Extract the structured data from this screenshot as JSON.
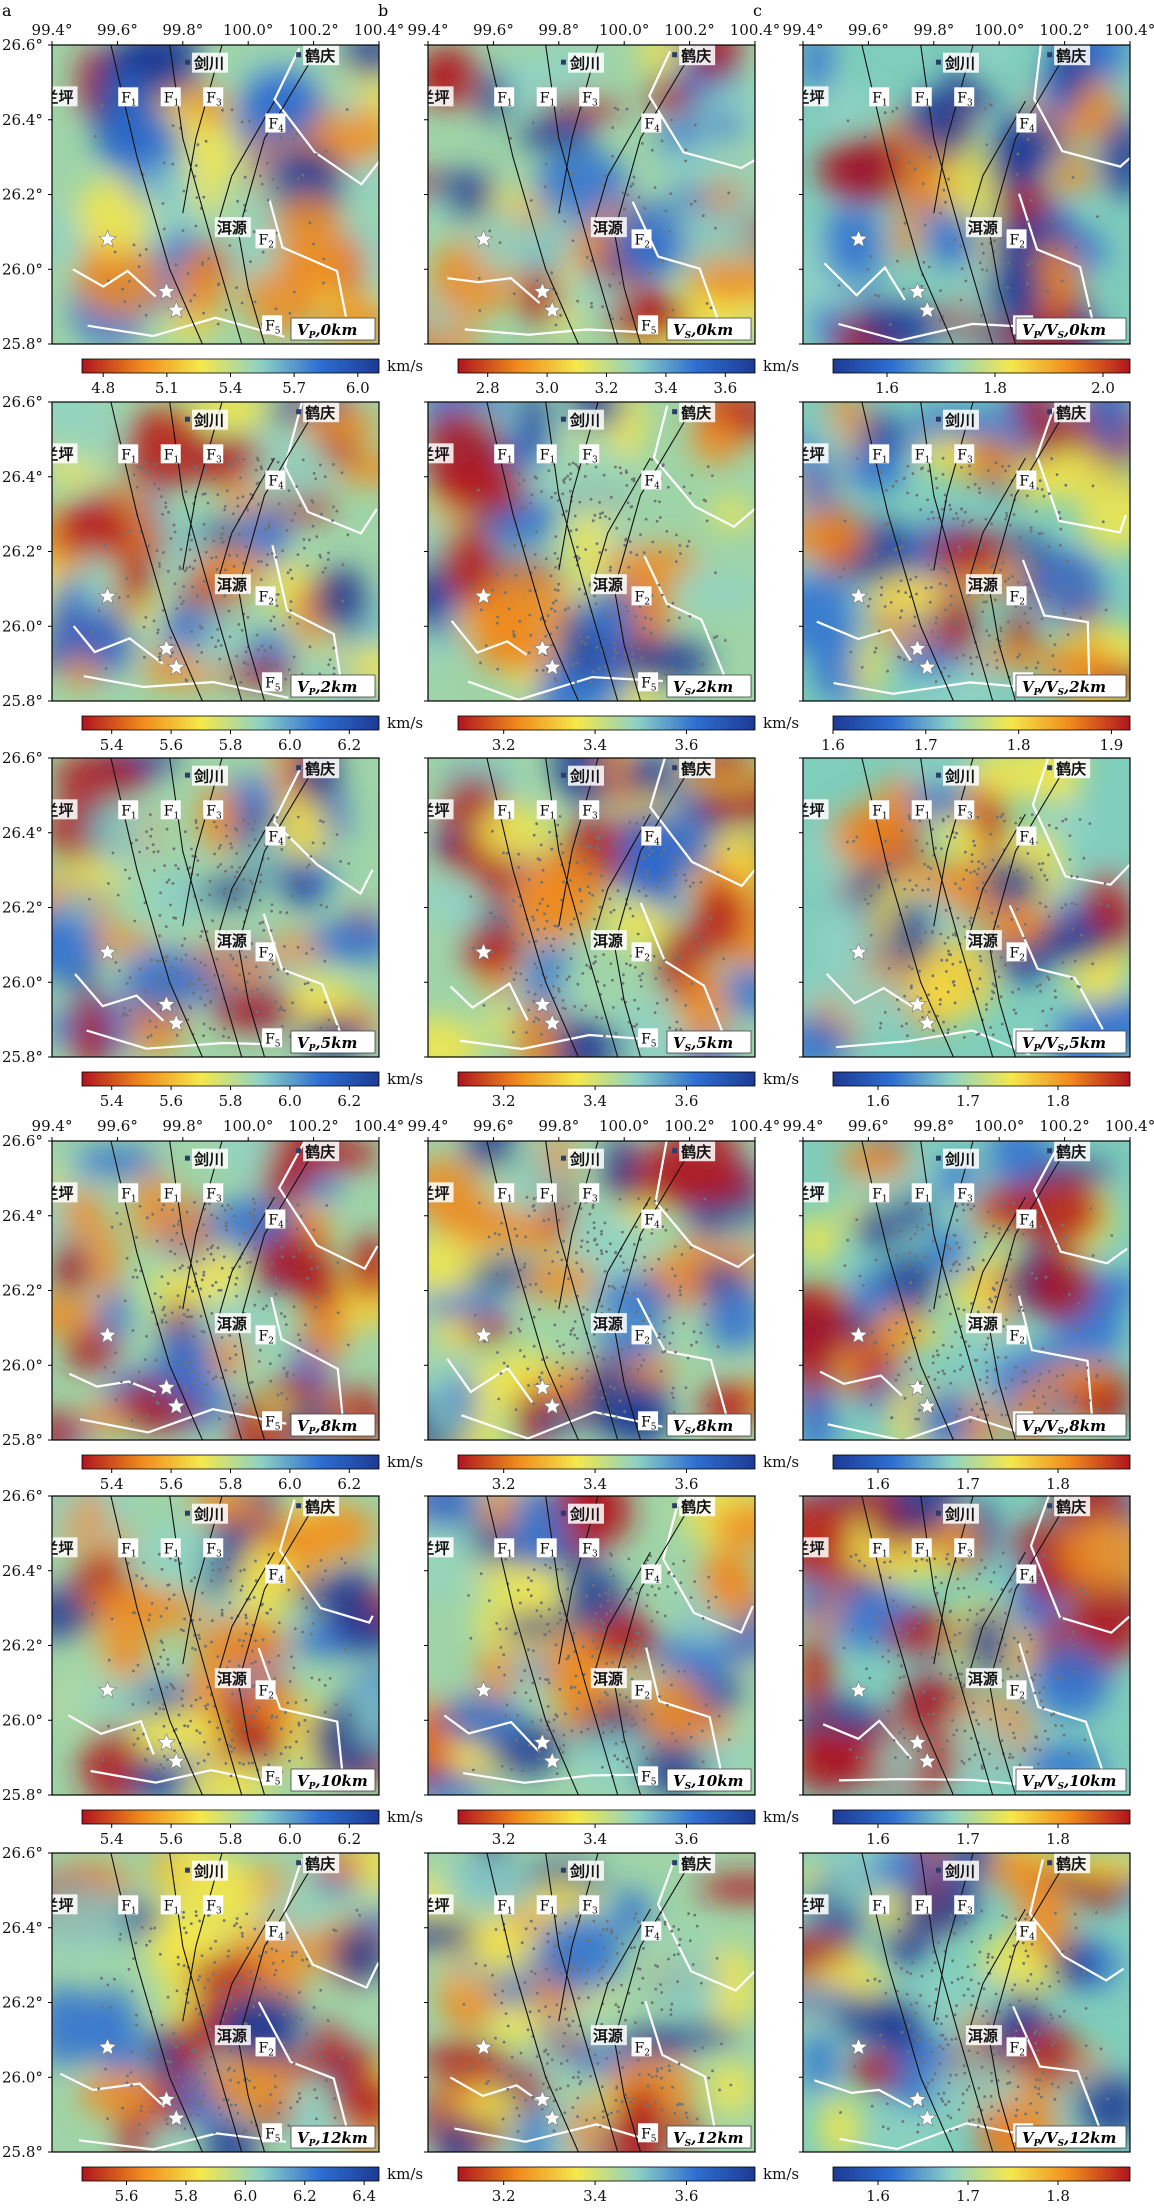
{
  "chart_data": {
    "type": "heatmap",
    "panel_letters": [
      "a",
      "b",
      "c"
    ],
    "lon_ticks": [
      "99.4°",
      "99.6°",
      "99.8°",
      "100.0°",
      "100.2°",
      "100.4°"
    ],
    "lat_ticks": [
      "26.6°",
      "26.4°",
      "26.2°",
      "26.0°",
      "25.8°"
    ],
    "xlim": [
      99.4,
      100.4
    ],
    "ylim": [
      25.8,
      26.6
    ],
    "colorbar_unit": "km/s",
    "places": [
      {
        "name": "剑川",
        "lon": 99.88,
        "lat": 26.55
      },
      {
        "name": "鹤庆",
        "lon": 100.22,
        "lat": 26.57
      },
      {
        "name": "兰坪",
        "lon": 99.42,
        "lat": 26.46
      },
      {
        "name": "洱源",
        "lon": 99.95,
        "lat": 26.11
      }
    ],
    "fault_labels": [
      {
        "name": "F",
        "sub": "1",
        "lon": 99.63,
        "lat": 26.46
      },
      {
        "name": "F",
        "sub": "1",
        "lon": 99.76,
        "lat": 26.46
      },
      {
        "name": "F",
        "sub": "3",
        "lon": 99.89,
        "lat": 26.46
      },
      {
        "name": "F",
        "sub": "4",
        "lon": 100.08,
        "lat": 26.39
      },
      {
        "name": "F",
        "sub": "2",
        "lon": 100.05,
        "lat": 26.08
      },
      {
        "name": "F",
        "sub": "5",
        "lon": 100.07,
        "lat": 25.85
      }
    ],
    "stars": [
      {
        "lon": 99.57,
        "lat": 26.08
      },
      {
        "lon": 99.75,
        "lat": 25.94
      },
      {
        "lon": 99.78,
        "lat": 25.89
      }
    ],
    "rows": [
      {
        "depth": "0km",
        "cb_ticks": [
          [
            "4.8",
            "5.1",
            "5.4",
            "5.7",
            "6.0"
          ],
          [
            "2.8",
            "3.0",
            "3.2",
            "3.4",
            "3.6"
          ],
          [
            "1.6",
            "1.8",
            "2.0"
          ]
        ],
        "vp_range": [
          4.7,
          6.1
        ],
        "vs_range": [
          2.7,
          3.7
        ],
        "r_range": [
          1.5,
          2.05
        ]
      },
      {
        "depth": "2km",
        "cb_ticks": [
          [
            "5.4",
            "5.6",
            "5.8",
            "6.0",
            "6.2"
          ],
          [
            "3.2",
            "3.4",
            "3.6"
          ],
          [
            "1.6",
            "1.7",
            "1.8",
            "1.9"
          ]
        ],
        "vp_range": [
          5.3,
          6.3
        ],
        "vs_range": [
          3.1,
          3.75
        ],
        "r_range": [
          1.6,
          1.92
        ]
      },
      {
        "depth": "5km",
        "cb_ticks": [
          [
            "5.4",
            "5.6",
            "5.8",
            "6.0",
            "6.2"
          ],
          [
            "3.2",
            "3.4",
            "3.6"
          ],
          [
            "1.6",
            "1.7",
            "1.8"
          ]
        ],
        "vp_range": [
          5.3,
          6.3
        ],
        "vs_range": [
          3.1,
          3.75
        ],
        "r_range": [
          1.55,
          1.88
        ]
      },
      {
        "depth": "8km",
        "cb_ticks": [
          [
            "5.4",
            "5.6",
            "5.8",
            "6.0",
            "6.2"
          ],
          [
            "3.2",
            "3.4",
            "3.6"
          ],
          [
            "1.6",
            "1.7",
            "1.8"
          ]
        ],
        "vp_range": [
          5.3,
          6.3
        ],
        "vs_range": [
          3.1,
          3.75
        ],
        "r_range": [
          1.55,
          1.88
        ]
      },
      {
        "depth": "10km",
        "cb_ticks": [
          [
            "5.4",
            "5.6",
            "5.8",
            "6.0",
            "6.2"
          ],
          [
            "3.2",
            "3.4",
            "3.6"
          ],
          [
            "1.6",
            "1.7",
            "1.8"
          ]
        ],
        "vp_range": [
          5.3,
          6.3
        ],
        "vs_range": [
          3.1,
          3.75
        ],
        "r_range": [
          1.55,
          1.88
        ]
      },
      {
        "depth": "12km",
        "cb_ticks": [
          [
            "5.6",
            "5.8",
            "6.0",
            "6.2",
            "6.4"
          ],
          [
            "3.2",
            "3.4",
            "3.6"
          ],
          [
            "1.6",
            "1.7",
            "1.8"
          ]
        ],
        "vp_range": [
          5.45,
          6.45
        ],
        "vs_range": [
          3.1,
          3.75
        ],
        "r_range": [
          1.55,
          1.88
        ]
      }
    ],
    "panel_label_prefix": [
      "V",
      "V",
      "V"
    ],
    "colors": {
      "high": "#b0141e",
      "mid_high": "#f08a1c",
      "mid": "#f4e84a",
      "mid_low": "#8fd2c4",
      "low": "#2f6fd1",
      "very_low": "#1c3a94",
      "outline": "#ffffff",
      "fault": "#111111",
      "quake": "#6e7375"
    }
  }
}
